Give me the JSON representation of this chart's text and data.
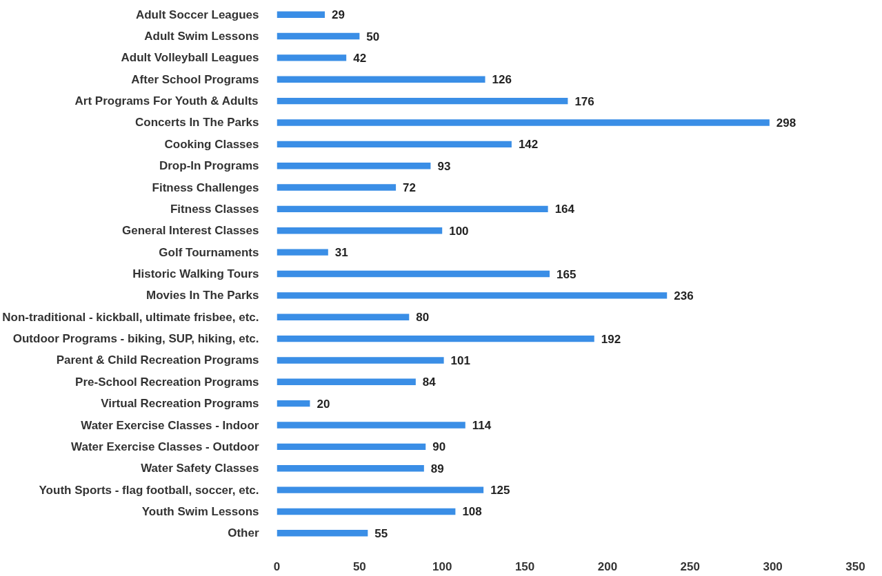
{
  "chart_data": {
    "type": "bar",
    "orientation": "horizontal",
    "categories": [
      "Adult Soccer Leagues",
      "Adult Swim Lessons",
      "Adult Volleyball Leagues",
      "After School Programs",
      "Art Programs For Youth & Adults",
      "Concerts In The Parks",
      "Cooking Classes",
      "Drop-In Programs",
      "Fitness Challenges",
      "Fitness Classes",
      "General Interest Classes",
      "Golf Tournaments",
      "Historic Walking Tours",
      "Movies In The Parks",
      "Non-traditional - kickball, ultimate frisbee, etc.",
      "Outdoor Programs - biking, SUP, hiking, etc.",
      "Parent & Child Recreation Programs",
      "Pre-School Recreation Programs",
      "Virtual Recreation Programs",
      "Water Exercise Classes - Indoor",
      "Water Exercise Classes - Outdoor",
      "Water Safety Classes",
      "Youth Sports - flag football, soccer, etc.",
      "Youth Swim Lessons",
      "Other"
    ],
    "values": [
      29,
      50,
      42,
      126,
      176,
      298,
      142,
      93,
      72,
      164,
      100,
      31,
      165,
      236,
      80,
      192,
      101,
      84,
      20,
      114,
      90,
      89,
      125,
      108,
      55
    ],
    "color": "#3a8ee6",
    "data_labels": true,
    "xlim": [
      0,
      350
    ],
    "xticks": [
      0,
      50,
      100,
      150,
      200,
      250,
      300,
      350
    ],
    "grid": false
  }
}
